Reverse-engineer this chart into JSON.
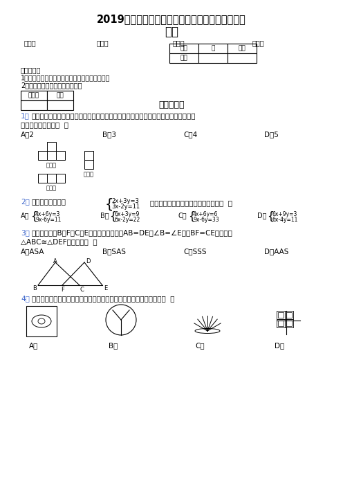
{
  "title_line1": "2019年最新中考数学高频考点重难点模拟试题训练",
  "title_line2": "汇总",
  "school_line_left": "学校：",
  "school_line_mid1": "姓名：",
  "school_line_mid2": "班级：",
  "school_line_right": "考号：",
  "table1_headers": [
    "题号",
    "一",
    "总分"
  ],
  "table1_row2": [
    "得分",
    "",
    ""
  ],
  "notice_title": "注意事项：",
  "notice1": "1．答题前填写好自己的姓名、班级、考号等信息",
  "notice2": "2．请将答案正确填写在答题卡上",
  "table2_col1": "评卷人",
  "table2_col2": "得分",
  "section_title": "一、选择题",
  "q1_text": "一个物体由多个完全相同的小立方体组成，它的三视图如图所示，那么组成这个物体的",
  "q1_text2": "小立方体的个数为（  ）",
  "q1_opts": [
    "A．2",
    "B．3",
    "C．4",
    "D．5"
  ],
  "label_zhushiping": "主视图",
  "label_zushiping": "左视图",
  "label_fushiping": "俧视图",
  "q2_text": "用加减法解方程组",
  "q2_text2": "时，有下列四种变形，其中正确的是（  ）",
  "q3_text": "如图，已知点B，F，C，E在同一直线上，若AB=DE，∠B=∠E，且BF=CE，则要使",
  "q3_text2": "△ABC≅△DEF的理由是（  ）",
  "q3_opts": [
    "A．ASA",
    "B．SAS",
    "C．SSS",
    "D．AAS"
  ],
  "q4_text": "在下面四个图形中，既包含图形的旋转，又有图形的轴对称设计的是（  ）",
  "q4_opts": [
    "A．",
    "B．",
    "C．",
    "D．"
  ],
  "blue_color": "#4169cd"
}
